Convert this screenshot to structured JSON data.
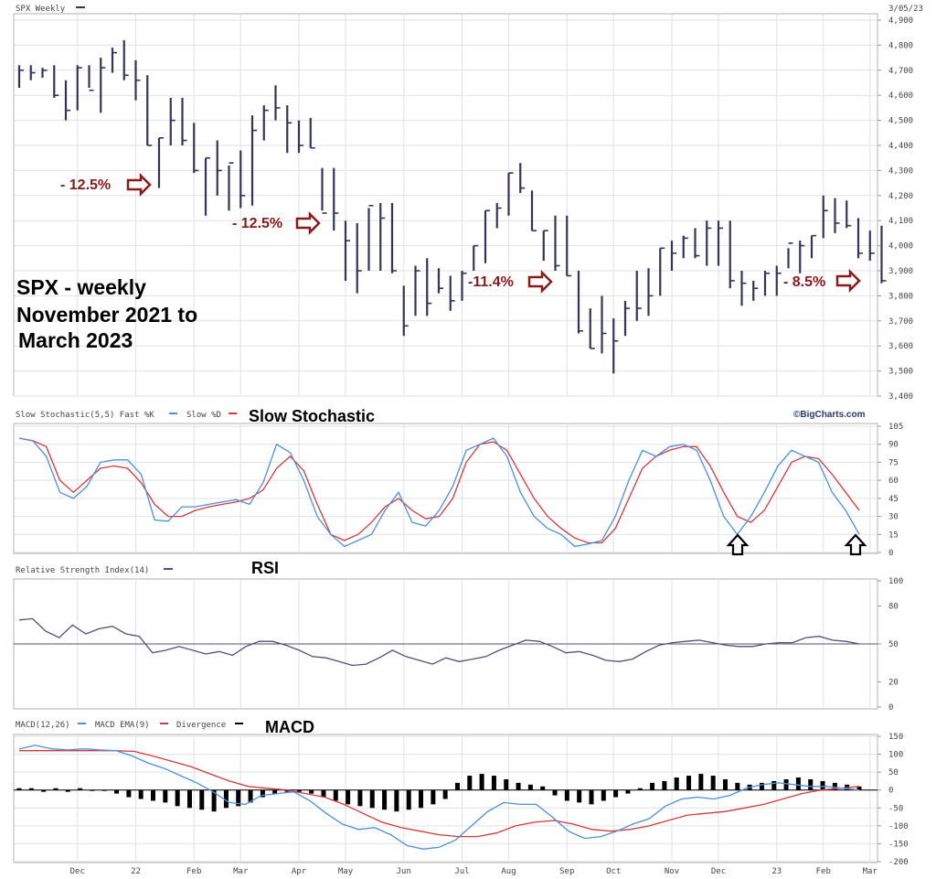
{
  "header": {
    "title": "SPX Weekly",
    "date": "3/05/23",
    "watermark": "©BigCharts.com"
  },
  "colors": {
    "bars": "#33335c",
    "fast_k": "#4a90e2",
    "slow_d": "#d9383a",
    "rsi": "#50507a",
    "macd": "#4a90e2",
    "macd_ema": "#d9383a",
    "divergence": "#000000",
    "annotation": "#8b1a1a"
  },
  "annotations": {
    "big_label_lines": [
      "SPX - weekly",
      "November 2021 to",
      "March 2023"
    ],
    "drops": [
      "- 12.5%",
      "- 12.5%",
      "-11.4%",
      "- 8.5%"
    ],
    "stochastic_title": "Slow Stochastic",
    "rsi_title": "RSI",
    "macd_title": "MACD",
    "arrow_up_icons": [
      "up-arrow-icon",
      "up-arrow-icon"
    ]
  },
  "chart_data": [
    {
      "type": "ohlc",
      "title": "SPX Weekly",
      "ylim": [
        3400,
        4900
      ],
      "yticks": [
        3400,
        3500,
        3600,
        3700,
        3800,
        3900,
        4000,
        4100,
        4200,
        4300,
        4400,
        4500,
        4600,
        4700,
        4800,
        4900
      ],
      "ytick_labels": [
        "3,400",
        "3,500",
        "3,600",
        "3,700",
        "3,800",
        "3,900",
        "4,000",
        "4,100",
        "4,200",
        "4,300",
        "4,400",
        "4,500",
        "4,600",
        "4,700",
        "4,800",
        "4,900"
      ],
      "x_labels": [
        "Dec",
        "22",
        "Feb",
        "Mar",
        "Apr",
        "May",
        "Jun",
        "Jul",
        "Aug",
        "Sep",
        "Oct",
        "Nov",
        "Dec",
        "23",
        "Feb",
        "Mar"
      ],
      "x_label_weeks": [
        5,
        10,
        15,
        19,
        24,
        28,
        33,
        38,
        42,
        47,
        51,
        56,
        60,
        65,
        69,
        73
      ],
      "bars": [
        {
          "h": 4720,
          "l": 4630,
          "c": 4700
        },
        {
          "h": 4720,
          "l": 4660,
          "c": 4690
        },
        {
          "h": 4710,
          "l": 4670,
          "c": 4700
        },
        {
          "h": 4720,
          "l": 4590,
          "c": 4600
        },
        {
          "h": 4660,
          "l": 4500,
          "c": 4540
        },
        {
          "h": 4720,
          "l": 4540,
          "c": 4710
        },
        {
          "h": 4720,
          "l": 4630,
          "c": 4620
        },
        {
          "h": 4750,
          "l": 4530,
          "c": 4710
        },
        {
          "h": 4790,
          "l": 4690,
          "c": 4770
        },
        {
          "h": 4820,
          "l": 4660,
          "c": 4680
        },
        {
          "h": 4740,
          "l": 4580,
          "c": 4660
        },
        {
          "h": 4680,
          "l": 4400,
          "c": 4400
        },
        {
          "h": 4430,
          "l": 4230,
          "c": 4430
        },
        {
          "h": 4590,
          "l": 4400,
          "c": 4500
        },
        {
          "h": 4590,
          "l": 4400,
          "c": 4420
        },
        {
          "h": 4490,
          "l": 4290,
          "c": 4300
        },
        {
          "h": 4350,
          "l": 4120,
          "c": 4350
        },
        {
          "h": 4420,
          "l": 4200,
          "c": 4300
        },
        {
          "h": 4320,
          "l": 4140,
          "c": 4330
        },
        {
          "h": 4380,
          "l": 4150,
          "c": 4200
        },
        {
          "h": 4520,
          "l": 4160,
          "c": 4460
        },
        {
          "h": 4560,
          "l": 4420,
          "c": 4540
        },
        {
          "h": 4640,
          "l": 4500,
          "c": 4550
        },
        {
          "h": 4560,
          "l": 4370,
          "c": 4490
        },
        {
          "h": 4500,
          "l": 4370,
          "c": 4400
        },
        {
          "h": 4510,
          "l": 4390,
          "c": 4390
        },
        {
          "h": 4310,
          "l": 4140,
          "c": 4130
        },
        {
          "h": 4310,
          "l": 4060,
          "c": 4130
        },
        {
          "h": 4100,
          "l": 3860,
          "c": 4020
        },
        {
          "h": 4090,
          "l": 3810,
          "c": 3900
        },
        {
          "h": 4150,
          "l": 3900,
          "c": 4160
        },
        {
          "h": 4170,
          "l": 3900,
          "c": 4110
        },
        {
          "h": 4170,
          "l": 3890,
          "c": 3900
        },
        {
          "h": 3840,
          "l": 3640,
          "c": 3680
        },
        {
          "h": 3920,
          "l": 3720,
          "c": 3900
        },
        {
          "h": 3950,
          "l": 3720,
          "c": 3770
        },
        {
          "h": 3910,
          "l": 3810,
          "c": 3830
        },
        {
          "h": 3880,
          "l": 3740,
          "c": 3780
        },
        {
          "h": 3900,
          "l": 3780,
          "c": 3890
        },
        {
          "h": 4000,
          "l": 3900,
          "c": 4000
        },
        {
          "h": 4140,
          "l": 3930,
          "c": 4140
        },
        {
          "h": 4170,
          "l": 4070,
          "c": 4150
        },
        {
          "h": 4290,
          "l": 4120,
          "c": 4290
        },
        {
          "h": 4330,
          "l": 4210,
          "c": 4230
        },
        {
          "h": 4220,
          "l": 4060,
          "c": 4060
        },
        {
          "h": 4060,
          "l": 3940,
          "c": 4060
        },
        {
          "h": 4120,
          "l": 3900,
          "c": 3920
        },
        {
          "h": 4120,
          "l": 3880,
          "c": 3880
        },
        {
          "h": 3900,
          "l": 3650,
          "c": 3660
        },
        {
          "h": 3750,
          "l": 3590,
          "c": 3590
        },
        {
          "h": 3800,
          "l": 3570,
          "c": 3650
        },
        {
          "h": 3710,
          "l": 3490,
          "c": 3620
        },
        {
          "h": 3780,
          "l": 3640,
          "c": 3750
        },
        {
          "h": 3900,
          "l": 3700,
          "c": 3750
        },
        {
          "h": 3910,
          "l": 3720,
          "c": 3800
        },
        {
          "h": 3990,
          "l": 3800,
          "c": 3990
        },
        {
          "h": 4020,
          "l": 3900,
          "c": 3970
        },
        {
          "h": 4040,
          "l": 3950,
          "c": 4030
        },
        {
          "h": 4070,
          "l": 3950,
          "c": 3960
        },
        {
          "h": 4100,
          "l": 3920,
          "c": 4070
        },
        {
          "h": 4100,
          "l": 3920,
          "c": 4070
        },
        {
          "h": 4100,
          "l": 3830,
          "c": 3860
        },
        {
          "h": 3900,
          "l": 3760,
          "c": 3850
        },
        {
          "h": 3860,
          "l": 3780,
          "c": 3830
        },
        {
          "h": 3900,
          "l": 3800,
          "c": 3890
        },
        {
          "h": 3920,
          "l": 3800,
          "c": 3890
        },
        {
          "h": 3990,
          "l": 3910,
          "c": 4010
        },
        {
          "h": 4020,
          "l": 3890,
          "c": 4000
        },
        {
          "h": 4040,
          "l": 3950,
          "c": 4040
        },
        {
          "h": 4200,
          "l": 4030,
          "c": 4140
        },
        {
          "h": 4190,
          "l": 4050,
          "c": 4090
        },
        {
          "h": 4180,
          "l": 4070,
          "c": 4080
        },
        {
          "h": 4110,
          "l": 3950,
          "c": 3970
        },
        {
          "h": 4060,
          "l": 3940,
          "c": 3970
        },
        {
          "h": 4080,
          "l": 3850,
          "c": 3860
        }
      ]
    },
    {
      "type": "line",
      "title": "Slow Stochastic(5,5) Fast %K",
      "legend": [
        "Fast %K",
        "Slow %D"
      ],
      "ylim": [
        0,
        105
      ],
      "yticks": [
        0,
        15,
        30,
        45,
        60,
        75,
        90,
        105
      ],
      "series": [
        {
          "name": "Fast %K",
          "values": [
            95,
            93,
            80,
            50,
            45,
            55,
            75,
            77,
            77,
            65,
            27,
            26,
            38,
            38,
            40,
            42,
            44,
            40,
            58,
            90,
            83,
            60,
            30,
            15,
            5,
            10,
            15,
            35,
            50,
            25,
            22,
            35,
            55,
            85,
            90,
            95,
            80,
            50,
            30,
            20,
            15,
            5,
            7,
            10,
            30,
            60,
            85,
            80,
            88,
            90,
            85,
            60,
            30,
            15,
            30,
            50,
            72,
            85,
            80,
            75,
            50,
            35,
            15
          ]
        },
        {
          "name": "Slow %D",
          "values": [
            95,
            93,
            88,
            60,
            50,
            60,
            70,
            72,
            70,
            58,
            40,
            30,
            30,
            35,
            38,
            40,
            42,
            45,
            52,
            70,
            80,
            68,
            40,
            15,
            10,
            15,
            25,
            38,
            45,
            35,
            28,
            30,
            45,
            75,
            90,
            92,
            85,
            65,
            45,
            30,
            20,
            12,
            8,
            8,
            20,
            45,
            70,
            80,
            85,
            88,
            88,
            72,
            50,
            30,
            25,
            35,
            55,
            75,
            80,
            78,
            65,
            50,
            35
          ]
        }
      ]
    },
    {
      "type": "line",
      "title": "Relative Strength Index(14)",
      "ylim": [
        0,
        100
      ],
      "yticks": [
        0,
        20,
        50,
        80,
        100
      ],
      "ytick_labels": [
        "0",
        "20",
        "50",
        "80",
        "100"
      ],
      "series": [
        {
          "name": "Relative Strength Index(14)",
          "values": [
            69,
            70,
            60,
            55,
            65,
            58,
            62,
            64,
            58,
            56,
            43,
            45,
            48,
            45,
            42,
            44,
            41,
            48,
            52,
            52,
            49,
            45,
            40,
            39,
            36,
            33,
            34,
            39,
            45,
            40,
            37,
            34,
            39,
            36,
            38,
            40,
            45,
            49,
            53,
            52,
            48,
            43,
            44,
            41,
            37,
            36,
            38,
            44,
            49,
            51,
            52,
            53,
            51,
            49,
            48,
            48,
            50,
            51,
            51,
            55,
            56,
            53,
            52,
            50
          ]
        }
      ]
    },
    {
      "type": "line+bar",
      "title": "MACD(12,26)",
      "legend": [
        "MACD EMA(9)",
        "Divergence"
      ],
      "ylim": [
        -200,
        150
      ],
      "yticks": [
        -200,
        -150,
        -100,
        -50,
        0,
        50,
        100,
        150
      ],
      "series": [
        {
          "name": "MACD(12,26)",
          "values": [
            115,
            125,
            115,
            112,
            115,
            112,
            110,
            95,
            75,
            60,
            40,
            20,
            -5,
            -35,
            -40,
            -15,
            -10,
            -5,
            -30,
            -65,
            -95,
            -110,
            -105,
            -125,
            -155,
            -165,
            -160,
            -140,
            -100,
            -60,
            -35,
            -40,
            -40,
            -75,
            -115,
            -135,
            -130,
            -115,
            -95,
            -80,
            -45,
            -25,
            -20,
            -25,
            -15,
            5,
            15,
            20,
            15,
            10,
            10,
            5,
            0
          ]
        },
        {
          "name": "MACD EMA(9)",
          "values": [
            110,
            110,
            110,
            110,
            110,
            110,
            108,
            95,
            80,
            65,
            45,
            25,
            10,
            5,
            0,
            -10,
            -20,
            -40,
            -65,
            -90,
            -105,
            -115,
            -125,
            -130,
            -130,
            -120,
            -100,
            -90,
            -85,
            -95,
            -110,
            -115,
            -110,
            -100,
            -85,
            -70,
            -65,
            -60,
            -50,
            -40,
            -25,
            -10,
            0,
            5,
            10
          ]
        },
        {
          "name": "Divergence",
          "values": [
            5,
            5,
            -5,
            5,
            -5,
            5,
            0,
            0,
            -10,
            -20,
            -25,
            -30,
            -35,
            -45,
            -50,
            -55,
            -60,
            -50,
            -45,
            -35,
            -20,
            -10,
            -5,
            -5,
            -10,
            -20,
            -30,
            -40,
            -45,
            -50,
            -55,
            -60,
            -55,
            -50,
            -40,
            -25,
            20,
            40,
            45,
            40,
            30,
            20,
            15,
            10,
            -15,
            -30,
            -35,
            -40,
            -30,
            -20,
            -10,
            5,
            20,
            25,
            35,
            40,
            45,
            40,
            30,
            20,
            15,
            20,
            25,
            30,
            35,
            30,
            25,
            20,
            15,
            10
          ]
        }
      ]
    }
  ]
}
